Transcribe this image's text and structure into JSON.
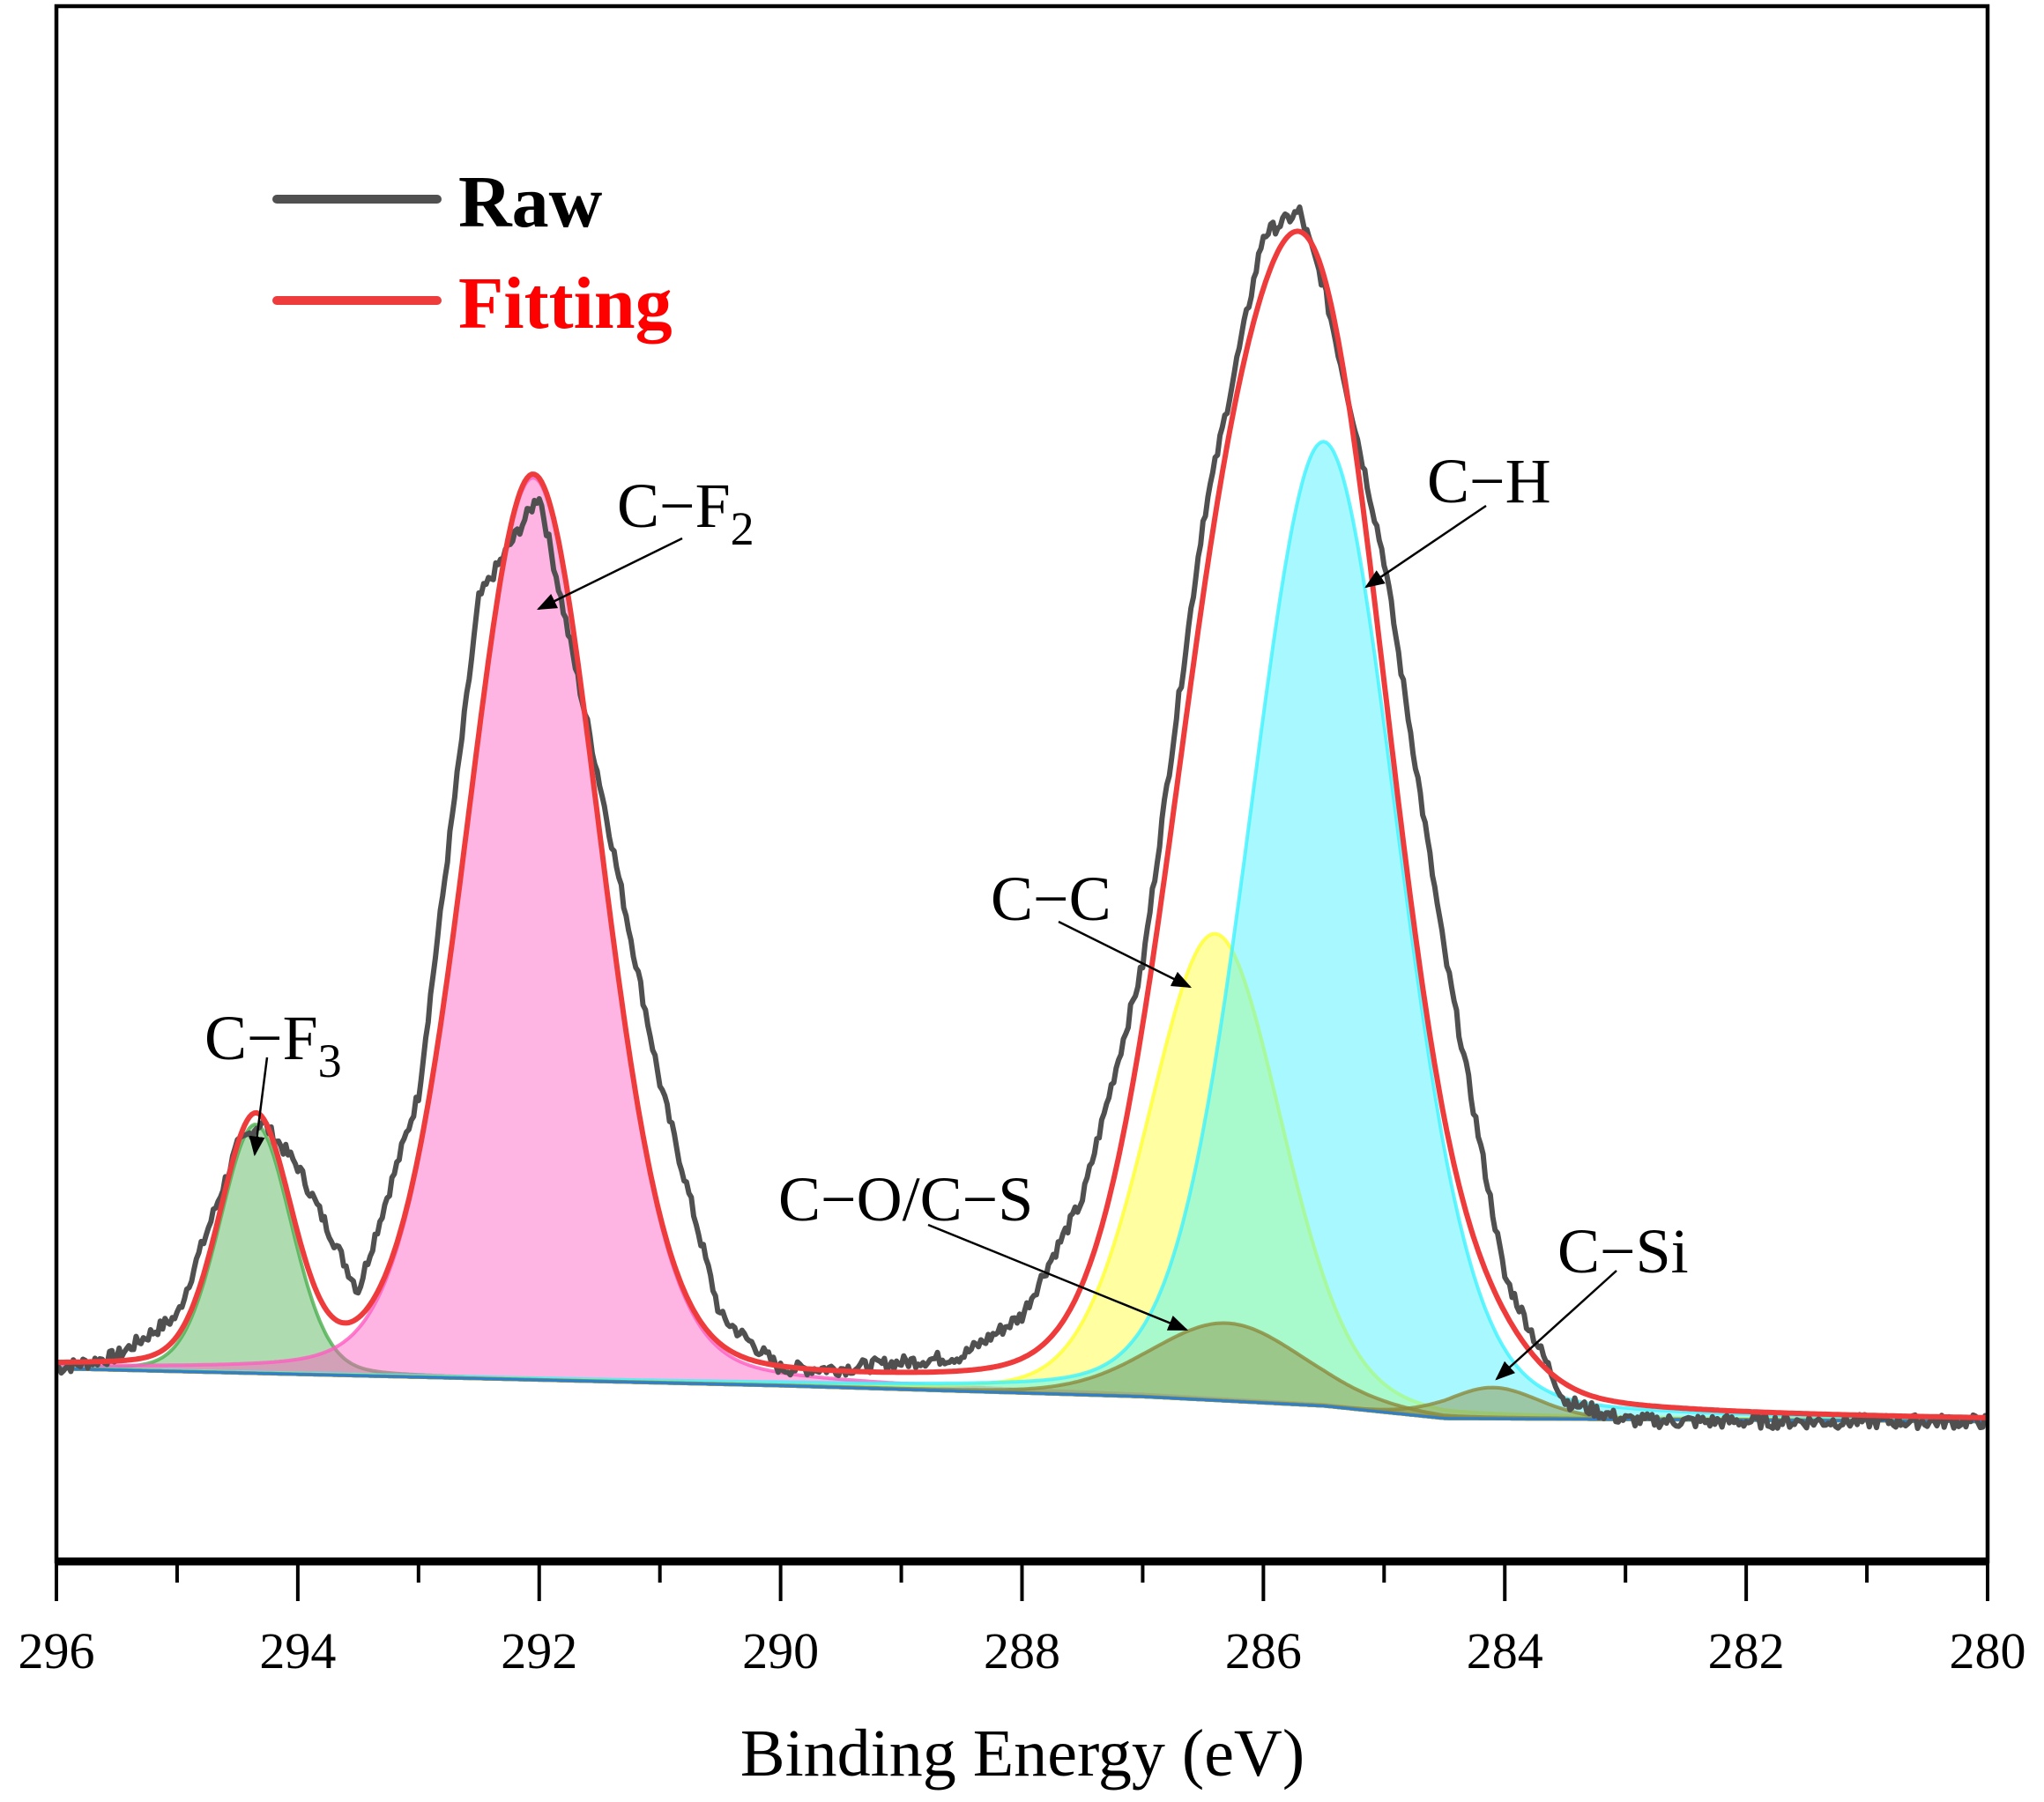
{
  "chart_data": {
    "type": "area",
    "title": "",
    "xlabel": "Binding Energy (eV)",
    "ylabel": "",
    "xlim": [
      296,
      280
    ],
    "x_reversed": true,
    "y_ticks_shown": false,
    "grid": false,
    "legend_placement": "top-left",
    "xticks": [
      "296",
      "294",
      "292",
      "290",
      "288",
      "286",
      "284",
      "282",
      "280"
    ],
    "legend": [
      {
        "name": "Raw",
        "color": "#505050"
      },
      {
        "name": "Fitting",
        "color": "#ee3b3b"
      }
    ],
    "baseline": {
      "x": [
        296,
        290,
        287,
        285.5,
        284.5,
        280
      ],
      "y": [
        12.4,
        11.3,
        10.6,
        10.0,
        9.2,
        9.0
      ]
    },
    "components": [
      {
        "label": "C−F",
        "sub": "3",
        "center": 294.35,
        "height": 16,
        "fwhm": 0.7,
        "color": "#4caf50"
      },
      {
        "label": "C−F",
        "sub": "2",
        "center": 292.05,
        "height": 58,
        "fwhm": 1.3,
        "color": "#ff5cc0"
      },
      {
        "label": "C−C",
        "sub": "",
        "center": 286.4,
        "height": 30,
        "fwhm": 1.3,
        "color": "#ffff30"
      },
      {
        "label": "C−H",
        "sub": "",
        "center": 285.5,
        "height": 62,
        "fwhm": 1.45,
        "color": "#3ff2ff"
      },
      {
        "label": "C−O/C−S",
        "sub": "",
        "center": 286.3,
        "height": 5,
        "fwhm": 1.5,
        "color": "#8c8a3c"
      },
      {
        "label": "C−Si",
        "sub": "",
        "center": 284.1,
        "height": 2,
        "fwhm": 0.9,
        "color": "#8c8a3c"
      }
    ],
    "raw": {
      "x": [
        296,
        295.5,
        295,
        294.5,
        294.3,
        294,
        293.5,
        293,
        292.5,
        292,
        291.5,
        291,
        290.5,
        290,
        289.5,
        289,
        288.5,
        288,
        287.5,
        287,
        286.5,
        286,
        285.7,
        285.5,
        285,
        284.5,
        284,
        283.5,
        283,
        282.5,
        282,
        281,
        280
      ],
      "y": [
        12.4,
        13.2,
        15.8,
        26.7,
        28.3,
        25.4,
        17.4,
        30.0,
        61.9,
        68.6,
        50.1,
        30.8,
        15.8,
        12.4,
        12.4,
        12.8,
        13.2,
        15.8,
        23.3,
        38.4,
        66.9,
        85.3,
        86.8,
        82.0,
        64.4,
        39.2,
        18.3,
        10.3,
        9.1,
        9.0,
        9.0,
        9.0,
        9.0
      ]
    }
  }
}
